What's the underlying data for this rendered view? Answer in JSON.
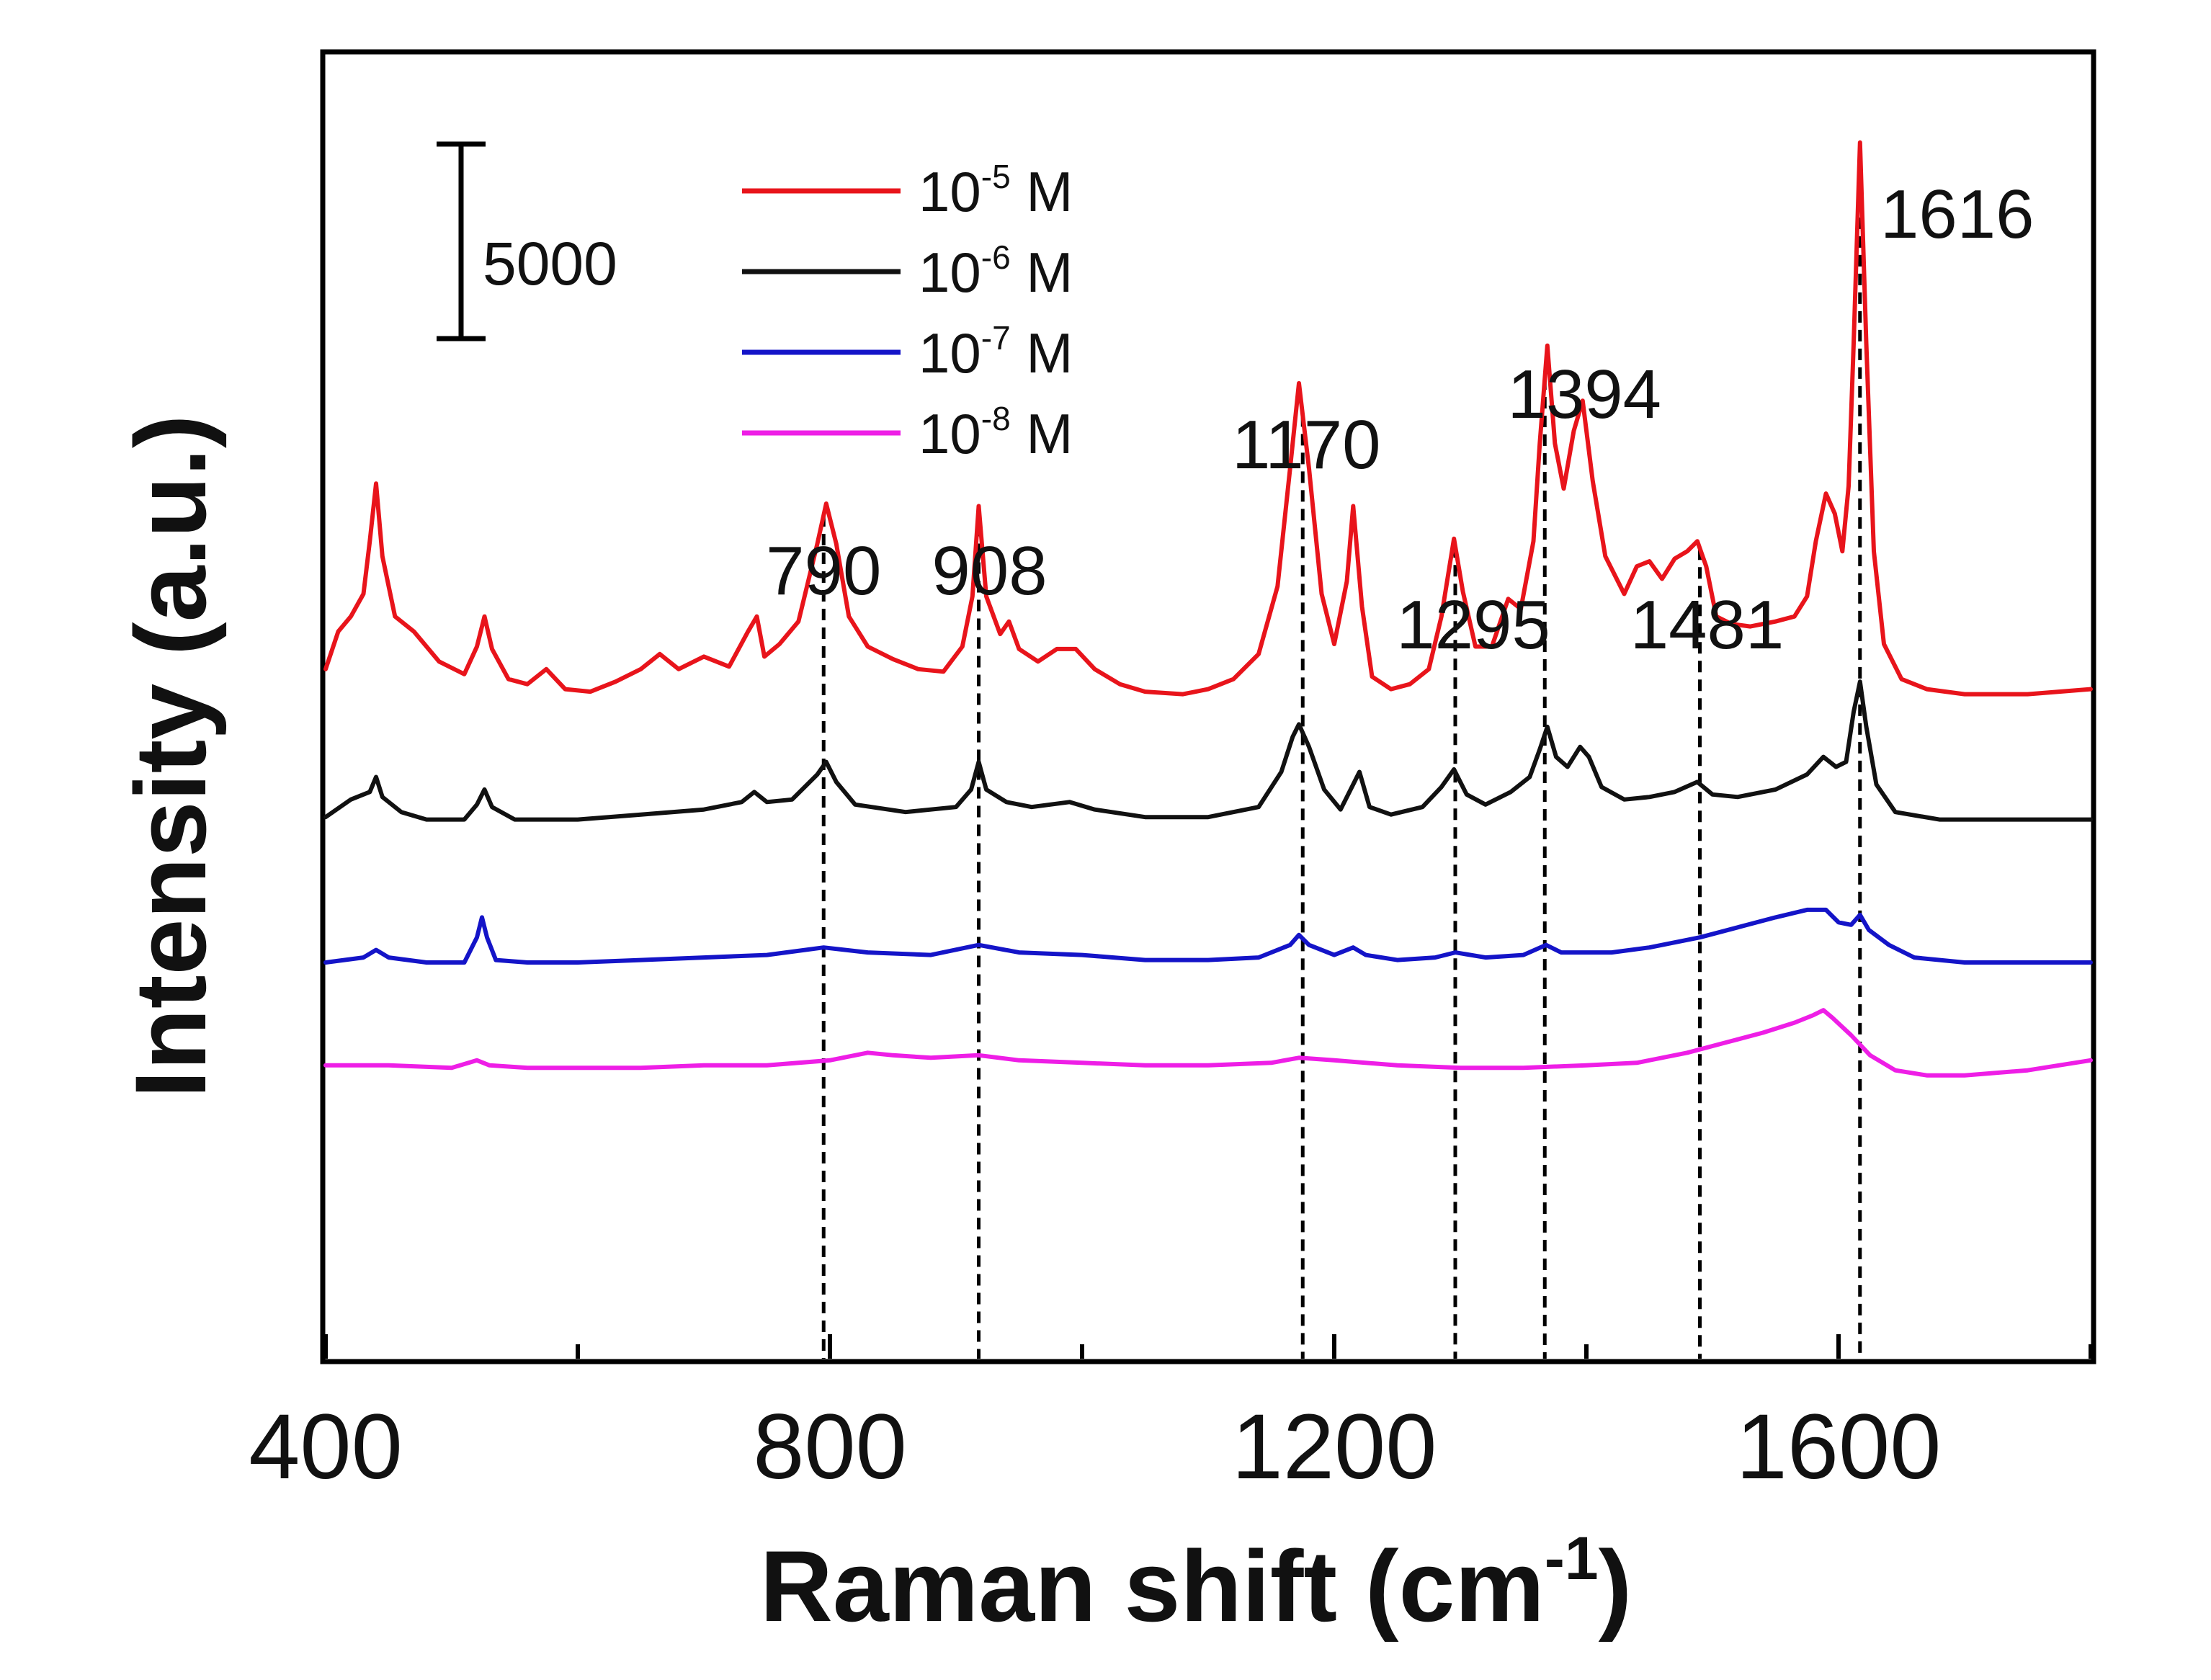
{
  "chart_data": {
    "type": "line",
    "title": "",
    "xlabel": "Raman shift (cm-1)",
    "xlabel_main": "Raman shift (cm",
    "xlabel_sup": "-1",
    "xlabel_end": ")",
    "ylabel": "Intensity (a.u.)",
    "xlim": [
      400,
      1800
    ],
    "ylim": [
      -7000,
      45000
    ],
    "x_ticks": [
      400,
      800,
      1200,
      1600
    ],
    "x_minor_ticks": [
      600,
      1000,
      1400,
      1800
    ],
    "y_ticks_shown": false,
    "legend_position": "top-left",
    "scale_bar": {
      "value": 5000,
      "label": "5000"
    },
    "peaks": [
      {
        "x": 795,
        "label": "790"
      },
      {
        "x": 918,
        "label": "908"
      },
      {
        "x": 1175,
        "label": "1170"
      },
      {
        "x": 1296,
        "label": "1295"
      },
      {
        "x": 1367,
        "label": "1394"
      },
      {
        "x": 1490,
        "label": "1481"
      },
      {
        "x": 1617,
        "label": "1616"
      }
    ],
    "series": [
      {
        "name": "10^-5 M",
        "legend_base": "10",
        "legend_sup": "-5",
        "legend_unit": "M",
        "color": "#e8141b",
        "baseline": 19500,
        "points": [
          [
            400,
            20500
          ],
          [
            410,
            22000
          ],
          [
            420,
            22600
          ],
          [
            430,
            23500
          ],
          [
            435,
            25600
          ],
          [
            440,
            27900
          ],
          [
            445,
            25000
          ],
          [
            455,
            22600
          ],
          [
            470,
            22000
          ],
          [
            490,
            20800
          ],
          [
            510,
            20300
          ],
          [
            520,
            21400
          ],
          [
            526,
            22600
          ],
          [
            532,
            21300
          ],
          [
            545,
            20100
          ],
          [
            560,
            19900
          ],
          [
            575,
            20500
          ],
          [
            590,
            19700
          ],
          [
            610,
            19600
          ],
          [
            630,
            20000
          ],
          [
            650,
            20500
          ],
          [
            665,
            21100
          ],
          [
            680,
            20500
          ],
          [
            700,
            21000
          ],
          [
            720,
            20600
          ],
          [
            735,
            22000
          ],
          [
            742,
            22600
          ],
          [
            748,
            21000
          ],
          [
            760,
            21500
          ],
          [
            775,
            22400
          ],
          [
            790,
            25500
          ],
          [
            797,
            27100
          ],
          [
            805,
            25500
          ],
          [
            815,
            22600
          ],
          [
            830,
            21400
          ],
          [
            850,
            20900
          ],
          [
            870,
            20500
          ],
          [
            890,
            20400
          ],
          [
            905,
            21400
          ],
          [
            913,
            23400
          ],
          [
            918,
            27000
          ],
          [
            924,
            23400
          ],
          [
            935,
            21900
          ],
          [
            942,
            22400
          ],
          [
            950,
            21300
          ],
          [
            965,
            20800
          ],
          [
            980,
            21300
          ],
          [
            995,
            21300
          ],
          [
            1010,
            20500
          ],
          [
            1030,
            19900
          ],
          [
            1050,
            19600
          ],
          [
            1080,
            19500
          ],
          [
            1100,
            19700
          ],
          [
            1120,
            20100
          ],
          [
            1140,
            21100
          ],
          [
            1155,
            23800
          ],
          [
            1165,
            28500
          ],
          [
            1172,
            31900
          ],
          [
            1180,
            28500
          ],
          [
            1190,
            23500
          ],
          [
            1200,
            21500
          ],
          [
            1210,
            24000
          ],
          [
            1215,
            27000
          ],
          [
            1222,
            23000
          ],
          [
            1230,
            20200
          ],
          [
            1245,
            19700
          ],
          [
            1260,
            19900
          ],
          [
            1275,
            20500
          ],
          [
            1285,
            22600
          ],
          [
            1295,
            25700
          ],
          [
            1302,
            23600
          ],
          [
            1312,
            21400
          ],
          [
            1325,
            21400
          ],
          [
            1338,
            23300
          ],
          [
            1348,
            22900
          ],
          [
            1358,
            25600
          ],
          [
            1363,
            29500
          ],
          [
            1369,
            33400
          ],
          [
            1375,
            29500
          ],
          [
            1382,
            27700
          ],
          [
            1390,
            30000
          ],
          [
            1397,
            31200
          ],
          [
            1405,
            28000
          ],
          [
            1415,
            25000
          ],
          [
            1430,
            23500
          ],
          [
            1440,
            24600
          ],
          [
            1450,
            24800
          ],
          [
            1460,
            24100
          ],
          [
            1470,
            24900
          ],
          [
            1480,
            25200
          ],
          [
            1488,
            25600
          ],
          [
            1495,
            24600
          ],
          [
            1503,
            22600
          ],
          [
            1515,
            22300
          ],
          [
            1530,
            22200
          ],
          [
            1550,
            22400
          ],
          [
            1565,
            22600
          ],
          [
            1575,
            23400
          ],
          [
            1582,
            25600
          ],
          [
            1590,
            27500
          ],
          [
            1597,
            26700
          ],
          [
            1603,
            25200
          ],
          [
            1608,
            27800
          ],
          [
            1612,
            33500
          ],
          [
            1617,
            41500
          ],
          [
            1622,
            33500
          ],
          [
            1628,
            25200
          ],
          [
            1636,
            21500
          ],
          [
            1650,
            20100
          ],
          [
            1670,
            19700
          ],
          [
            1700,
            19500
          ],
          [
            1750,
            19500
          ],
          [
            1800,
            19700
          ]
        ]
      },
      {
        "name": "10^-6 M",
        "legend_base": "10",
        "legend_sup": "-6",
        "legend_unit": "M",
        "color": "#111111",
        "baseline": 14500,
        "points": [
          [
            400,
            14600
          ],
          [
            420,
            15300
          ],
          [
            435,
            15600
          ],
          [
            440,
            16200
          ],
          [
            445,
            15400
          ],
          [
            460,
            14800
          ],
          [
            480,
            14500
          ],
          [
            510,
            14500
          ],
          [
            520,
            15100
          ],
          [
            526,
            15700
          ],
          [
            532,
            15000
          ],
          [
            550,
            14500
          ],
          [
            600,
            14500
          ],
          [
            650,
            14700
          ],
          [
            700,
            14900
          ],
          [
            730,
            15200
          ],
          [
            740,
            15600
          ],
          [
            750,
            15200
          ],
          [
            770,
            15300
          ],
          [
            790,
            16300
          ],
          [
            797,
            16800
          ],
          [
            805,
            16000
          ],
          [
            820,
            15100
          ],
          [
            860,
            14800
          ],
          [
            900,
            15000
          ],
          [
            912,
            15700
          ],
          [
            918,
            16800
          ],
          [
            924,
            15700
          ],
          [
            940,
            15200
          ],
          [
            960,
            15000
          ],
          [
            990,
            15200
          ],
          [
            1010,
            14900
          ],
          [
            1050,
            14600
          ],
          [
            1100,
            14600
          ],
          [
            1140,
            15000
          ],
          [
            1158,
            16400
          ],
          [
            1167,
            17800
          ],
          [
            1172,
            18300
          ],
          [
            1180,
            17400
          ],
          [
            1192,
            15700
          ],
          [
            1205,
            14900
          ],
          [
            1215,
            15900
          ],
          [
            1220,
            16400
          ],
          [
            1228,
            15000
          ],
          [
            1245,
            14700
          ],
          [
            1270,
            15000
          ],
          [
            1285,
            15800
          ],
          [
            1295,
            16500
          ],
          [
            1305,
            15500
          ],
          [
            1320,
            15100
          ],
          [
            1340,
            15600
          ],
          [
            1355,
            16200
          ],
          [
            1363,
            17300
          ],
          [
            1369,
            18200
          ],
          [
            1376,
            17000
          ],
          [
            1385,
            16600
          ],
          [
            1395,
            17400
          ],
          [
            1402,
            17000
          ],
          [
            1412,
            15800
          ],
          [
            1430,
            15300
          ],
          [
            1450,
            15400
          ],
          [
            1470,
            15600
          ],
          [
            1488,
            16000
          ],
          [
            1500,
            15500
          ],
          [
            1520,
            15400
          ],
          [
            1550,
            15700
          ],
          [
            1575,
            16300
          ],
          [
            1588,
            17000
          ],
          [
            1598,
            16600
          ],
          [
            1606,
            16800
          ],
          [
            1612,
            18800
          ],
          [
            1617,
            20000
          ],
          [
            1622,
            18200
          ],
          [
            1630,
            15900
          ],
          [
            1645,
            14800
          ],
          [
            1680,
            14500
          ],
          [
            1750,
            14500
          ],
          [
            1800,
            14500
          ]
        ]
      },
      {
        "name": "10^-7 M",
        "legend_base": "10",
        "legend_sup": "-7",
        "legend_unit": "M",
        "color": "#1414c8",
        "baseline": 8800,
        "points": [
          [
            400,
            8800
          ],
          [
            430,
            9000
          ],
          [
            440,
            9300
          ],
          [
            450,
            9000
          ],
          [
            480,
            8800
          ],
          [
            510,
            8800
          ],
          [
            520,
            9800
          ],
          [
            524,
            10600
          ],
          [
            528,
            9800
          ],
          [
            535,
            8900
          ],
          [
            560,
            8800
          ],
          [
            600,
            8800
          ],
          [
            650,
            8900
          ],
          [
            700,
            9000
          ],
          [
            750,
            9100
          ],
          [
            795,
            9400
          ],
          [
            830,
            9200
          ],
          [
            880,
            9100
          ],
          [
            918,
            9500
          ],
          [
            950,
            9200
          ],
          [
            1000,
            9100
          ],
          [
            1050,
            8900
          ],
          [
            1100,
            8900
          ],
          [
            1140,
            9000
          ],
          [
            1165,
            9500
          ],
          [
            1172,
            9900
          ],
          [
            1180,
            9500
          ],
          [
            1200,
            9100
          ],
          [
            1215,
            9400
          ],
          [
            1225,
            9100
          ],
          [
            1250,
            8900
          ],
          [
            1280,
            9000
          ],
          [
            1296,
            9200
          ],
          [
            1320,
            9000
          ],
          [
            1350,
            9100
          ],
          [
            1368,
            9500
          ],
          [
            1380,
            9200
          ],
          [
            1420,
            9200
          ],
          [
            1450,
            9400
          ],
          [
            1490,
            9800
          ],
          [
            1520,
            10200
          ],
          [
            1550,
            10600
          ],
          [
            1575,
            10900
          ],
          [
            1590,
            10900
          ],
          [
            1600,
            10400
          ],
          [
            1610,
            10300
          ],
          [
            1617,
            10700
          ],
          [
            1624,
            10100
          ],
          [
            1640,
            9500
          ],
          [
            1660,
            9000
          ],
          [
            1700,
            8800
          ],
          [
            1750,
            8800
          ],
          [
            1800,
            8800
          ]
        ]
      },
      {
        "name": "10^-8 M",
        "legend_base": "10",
        "legend_sup": "-8",
        "legend_unit": "M",
        "color": "#ee1ee6",
        "baseline": 4600,
        "points": [
          [
            400,
            4700
          ],
          [
            450,
            4700
          ],
          [
            500,
            4600
          ],
          [
            520,
            4900
          ],
          [
            530,
            4700
          ],
          [
            560,
            4600
          ],
          [
            600,
            4600
          ],
          [
            650,
            4600
          ],
          [
            700,
            4700
          ],
          [
            750,
            4700
          ],
          [
            800,
            4900
          ],
          [
            830,
            5200
          ],
          [
            850,
            5100
          ],
          [
            880,
            5000
          ],
          [
            918,
            5100
          ],
          [
            950,
            4900
          ],
          [
            1000,
            4800
          ],
          [
            1050,
            4700
          ],
          [
            1100,
            4700
          ],
          [
            1150,
            4800
          ],
          [
            1172,
            5000
          ],
          [
            1200,
            4900
          ],
          [
            1250,
            4700
          ],
          [
            1300,
            4600
          ],
          [
            1350,
            4600
          ],
          [
            1400,
            4700
          ],
          [
            1440,
            4800
          ],
          [
            1480,
            5200
          ],
          [
            1510,
            5600
          ],
          [
            1540,
            6000
          ],
          [
            1565,
            6400
          ],
          [
            1580,
            6700
          ],
          [
            1588,
            6900
          ],
          [
            1595,
            6600
          ],
          [
            1610,
            5900
          ],
          [
            1625,
            5100
          ],
          [
            1645,
            4500
          ],
          [
            1670,
            4300
          ],
          [
            1700,
            4300
          ],
          [
            1750,
            4500
          ],
          [
            1800,
            4900
          ]
        ]
      }
    ]
  }
}
